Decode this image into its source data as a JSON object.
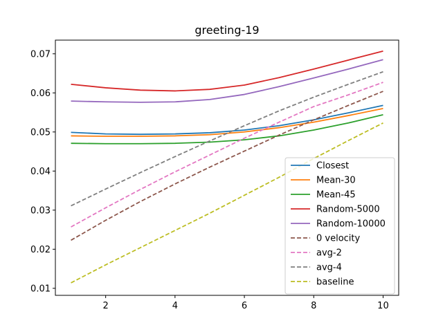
{
  "chart_data": {
    "type": "line",
    "title": "greeting-19",
    "xlabel": "",
    "ylabel": "",
    "xlim": [
      0.55,
      10.45
    ],
    "ylim": [
      0.0082,
      0.0735
    ],
    "xticks": [
      2,
      4,
      6,
      8,
      10
    ],
    "yticks": [
      0.01,
      0.02,
      0.03,
      0.04,
      0.05,
      0.06,
      0.07
    ],
    "ytick_labels": [
      "0.01",
      "0.02",
      "0.03",
      "0.04",
      "0.05",
      "0.06",
      "0.07"
    ],
    "xtick_labels": [
      "2",
      "4",
      "6",
      "8",
      "10"
    ],
    "grid": false,
    "legend_position": "lower-right",
    "x": [
      1,
      2,
      3,
      4,
      5,
      6,
      7,
      8,
      9,
      10
    ],
    "series": [
      {
        "name": "Closest",
        "color": "#1f77b4",
        "dash": "solid",
        "values": [
          0.0499,
          0.0495,
          0.0494,
          0.0495,
          0.0498,
          0.0505,
          0.0516,
          0.0531,
          0.0549,
          0.0568
        ]
      },
      {
        "name": "Mean-30",
        "color": "#ff7f0e",
        "dash": "solid",
        "values": [
          0.049,
          0.0489,
          0.0489,
          0.049,
          0.0493,
          0.05,
          0.0511,
          0.0525,
          0.0542,
          0.056
        ]
      },
      {
        "name": "Mean-45",
        "color": "#2ca02c",
        "dash": "solid",
        "values": [
          0.0471,
          0.047,
          0.047,
          0.0471,
          0.0474,
          0.048,
          0.049,
          0.0505,
          0.0523,
          0.0544
        ]
      },
      {
        "name": "Random-5000",
        "color": "#d62728",
        "dash": "solid",
        "values": [
          0.0622,
          0.0613,
          0.0607,
          0.0605,
          0.0609,
          0.062,
          0.0639,
          0.0661,
          0.0684,
          0.0707
        ]
      },
      {
        "name": "Random-10000",
        "color": "#9467bd",
        "dash": "solid",
        "values": [
          0.0579,
          0.0577,
          0.0576,
          0.0577,
          0.0583,
          0.0596,
          0.0616,
          0.0638,
          0.0661,
          0.0685
        ]
      },
      {
        "name": "0 velocity",
        "color": "#8c564b",
        "dash": "dashed",
        "values": [
          0.0223,
          0.0274,
          0.0322,
          0.0367,
          0.041,
          0.0451,
          0.0492,
          0.0531,
          0.0568,
          0.0604
        ]
      },
      {
        "name": "avg-2",
        "color": "#e377c2",
        "dash": "dashed",
        "values": [
          0.0257,
          0.0306,
          0.0353,
          0.0398,
          0.0441,
          0.0484,
          0.0525,
          0.0565,
          0.0595,
          0.0627
        ]
      },
      {
        "name": "avg-4",
        "color": "#7f7f7f",
        "dash": "dashed",
        "values": [
          0.0311,
          0.0354,
          0.0396,
          0.0437,
          0.0477,
          0.0516,
          0.0554,
          0.0589,
          0.0622,
          0.0654
        ]
      },
      {
        "name": "baseline",
        "color": "#bcbd22",
        "dash": "dashed",
        "values": [
          0.0114,
          0.016,
          0.0204,
          0.0248,
          0.0292,
          0.0338,
          0.0384,
          0.0432,
          0.0478,
          0.0523
        ]
      }
    ]
  }
}
